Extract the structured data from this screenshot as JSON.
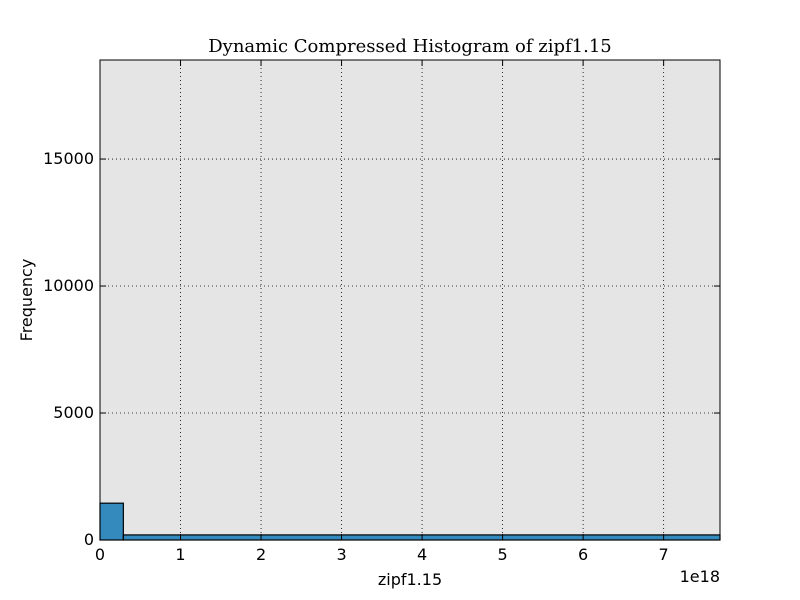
{
  "chart_data": {
    "type": "bar",
    "title": "Dynamic Compressed Histogram of zipf1.15",
    "xlabel": "zipf1.15",
    "ylabel": "Frequency",
    "x_offset_text": "1e18",
    "xlim": [
      0,
      7.7
    ],
    "ylim": [
      0,
      18900
    ],
    "x_ticks": [
      0,
      1,
      2,
      3,
      4,
      5,
      6,
      7
    ],
    "y_ticks": [
      0,
      5000,
      10000,
      15000
    ],
    "grid": true,
    "bins": [
      {
        "x0": 0,
        "x1": 0.29,
        "value": 1450
      },
      {
        "x0": 0.29,
        "x1": 7.7,
        "value": 200
      }
    ],
    "colors": {
      "bar": "#348abd",
      "plot_bg": "#e5e5e5",
      "edge": "#000000"
    }
  }
}
